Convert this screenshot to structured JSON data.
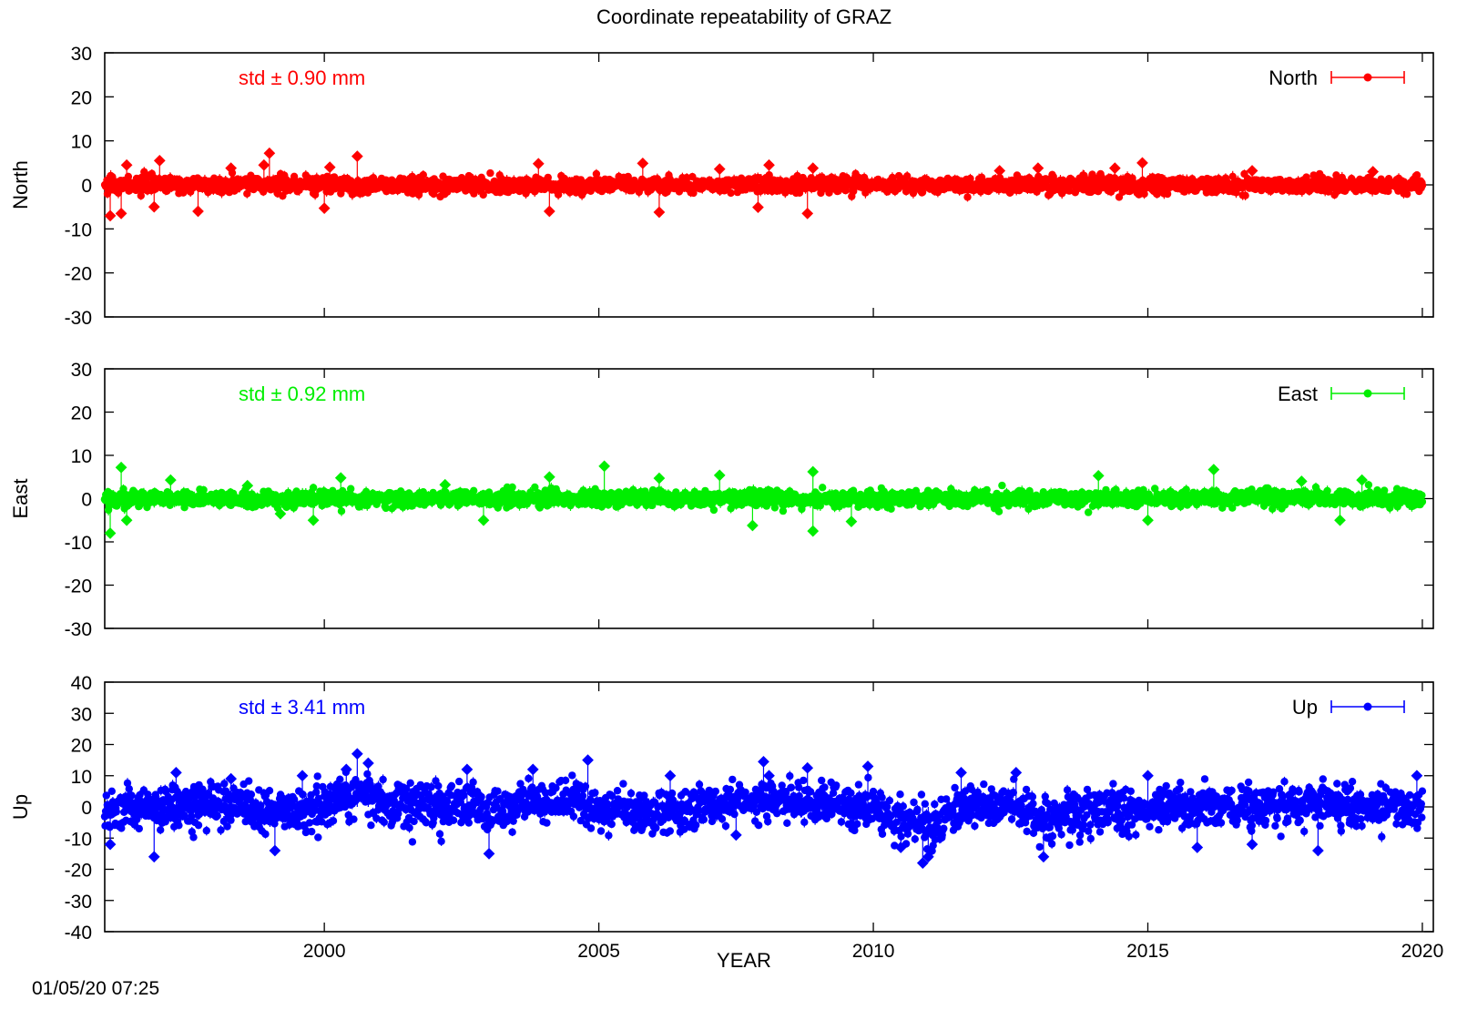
{
  "chart_data": {
    "type": "scatter",
    "title": "Coordinate repeatability of GRAZ",
    "xlabel": "YEAR",
    "xlim": [
      1996.0,
      2020.2
    ],
    "xticks": [
      2000,
      2005,
      2010,
      2015,
      2020
    ],
    "timestamp": "01/05/20 07:25",
    "panels": [
      {
        "name": "North",
        "ylabel": "North",
        "legend": "North",
        "std_label": "std ± 0.90 mm",
        "color": "#ff0000",
        "ylim": [
          -30,
          30
        ],
        "yticks": [
          -30,
          -20,
          -10,
          0,
          10,
          20,
          30
        ],
        "outliers": [
          [
            1996.1,
            -7
          ],
          [
            1996.3,
            -6.5
          ],
          [
            1996.4,
            4.5
          ],
          [
            1996.9,
            -5
          ],
          [
            1997.0,
            5.5
          ],
          [
            1997.7,
            -6
          ],
          [
            1998.3,
            3.8
          ],
          [
            1998.9,
            4.5
          ],
          [
            1999.0,
            7.2
          ],
          [
            2000.1,
            4.0
          ],
          [
            2000.0,
            -5.3
          ],
          [
            2000.6,
            6.5
          ],
          [
            2003.9,
            4.8
          ],
          [
            2004.1,
            -6.0
          ],
          [
            2005.8,
            4.9
          ],
          [
            2006.1,
            -6.2
          ],
          [
            2007.2,
            3.6
          ],
          [
            2007.9,
            -5.1
          ],
          [
            2008.1,
            4.5
          ],
          [
            2008.8,
            -6.5
          ],
          [
            2008.9,
            3.8
          ],
          [
            2012.3,
            3.2
          ],
          [
            2013.0,
            3.8
          ],
          [
            2014.4,
            3.8
          ],
          [
            2014.9,
            5.0
          ],
          [
            2016.9,
            3.2
          ],
          [
            2019.1,
            3.0
          ]
        ]
      },
      {
        "name": "East",
        "ylabel": "East",
        "legend": "East",
        "std_label": "std ± 0.92 mm",
        "color": "#00ee00",
        "ylim": [
          -30,
          30
        ],
        "yticks": [
          -30,
          -20,
          -10,
          0,
          10,
          20,
          30
        ],
        "outliers": [
          [
            1996.1,
            -8
          ],
          [
            1996.3,
            7.2
          ],
          [
            1996.4,
            -5.0
          ],
          [
            1997.2,
            4.3
          ],
          [
            1998.6,
            3.0
          ],
          [
            1999.2,
            -3.5
          ],
          [
            1999.8,
            -5.0
          ],
          [
            2000.3,
            4.8
          ],
          [
            2002.2,
            3.2
          ],
          [
            2002.9,
            -5.0
          ],
          [
            2004.1,
            5.0
          ],
          [
            2005.1,
            7.5
          ],
          [
            2006.1,
            4.7
          ],
          [
            2007.2,
            5.4
          ],
          [
            2007.8,
            -6.2
          ],
          [
            2008.9,
            6.2
          ],
          [
            2008.9,
            -7.5
          ],
          [
            2009.6,
            -5.3
          ],
          [
            2014.1,
            5.3
          ],
          [
            2015.0,
            -5.0
          ],
          [
            2016.2,
            6.7
          ],
          [
            2017.8,
            4.0
          ],
          [
            2018.5,
            -5.0
          ],
          [
            2018.9,
            4.3
          ]
        ]
      },
      {
        "name": "Up",
        "ylabel": "Up",
        "legend": "Up",
        "std_label": "std ± 3.41 mm",
        "color": "#0000ff",
        "ylim": [
          -40,
          40
        ],
        "yticks": [
          -40,
          -30,
          -20,
          -10,
          0,
          10,
          20,
          30,
          40
        ],
        "outliers": [
          [
            1996.1,
            -12
          ],
          [
            1996.9,
            -16
          ],
          [
            1997.3,
            11
          ],
          [
            1998.3,
            9
          ],
          [
            1999.1,
            -14
          ],
          [
            1999.6,
            10
          ],
          [
            2000.4,
            12
          ],
          [
            2000.6,
            17
          ],
          [
            2000.8,
            14
          ],
          [
            2002.6,
            12
          ],
          [
            2003.0,
            -15
          ],
          [
            2003.8,
            12
          ],
          [
            2004.8,
            15
          ],
          [
            2006.3,
            10
          ],
          [
            2007.5,
            -9
          ],
          [
            2008.0,
            14.5
          ],
          [
            2008.1,
            10
          ],
          [
            2008.8,
            12.5
          ],
          [
            2009.9,
            13
          ],
          [
            2010.5,
            -13
          ],
          [
            2010.9,
            -18
          ],
          [
            2011.0,
            -16
          ],
          [
            2011.6,
            11
          ],
          [
            2012.6,
            11
          ],
          [
            2013.1,
            -16
          ],
          [
            2015.0,
            10
          ],
          [
            2015.9,
            -13
          ],
          [
            2016.9,
            -12
          ],
          [
            2018.1,
            -14
          ],
          [
            2019.9,
            10
          ]
        ]
      }
    ]
  }
}
